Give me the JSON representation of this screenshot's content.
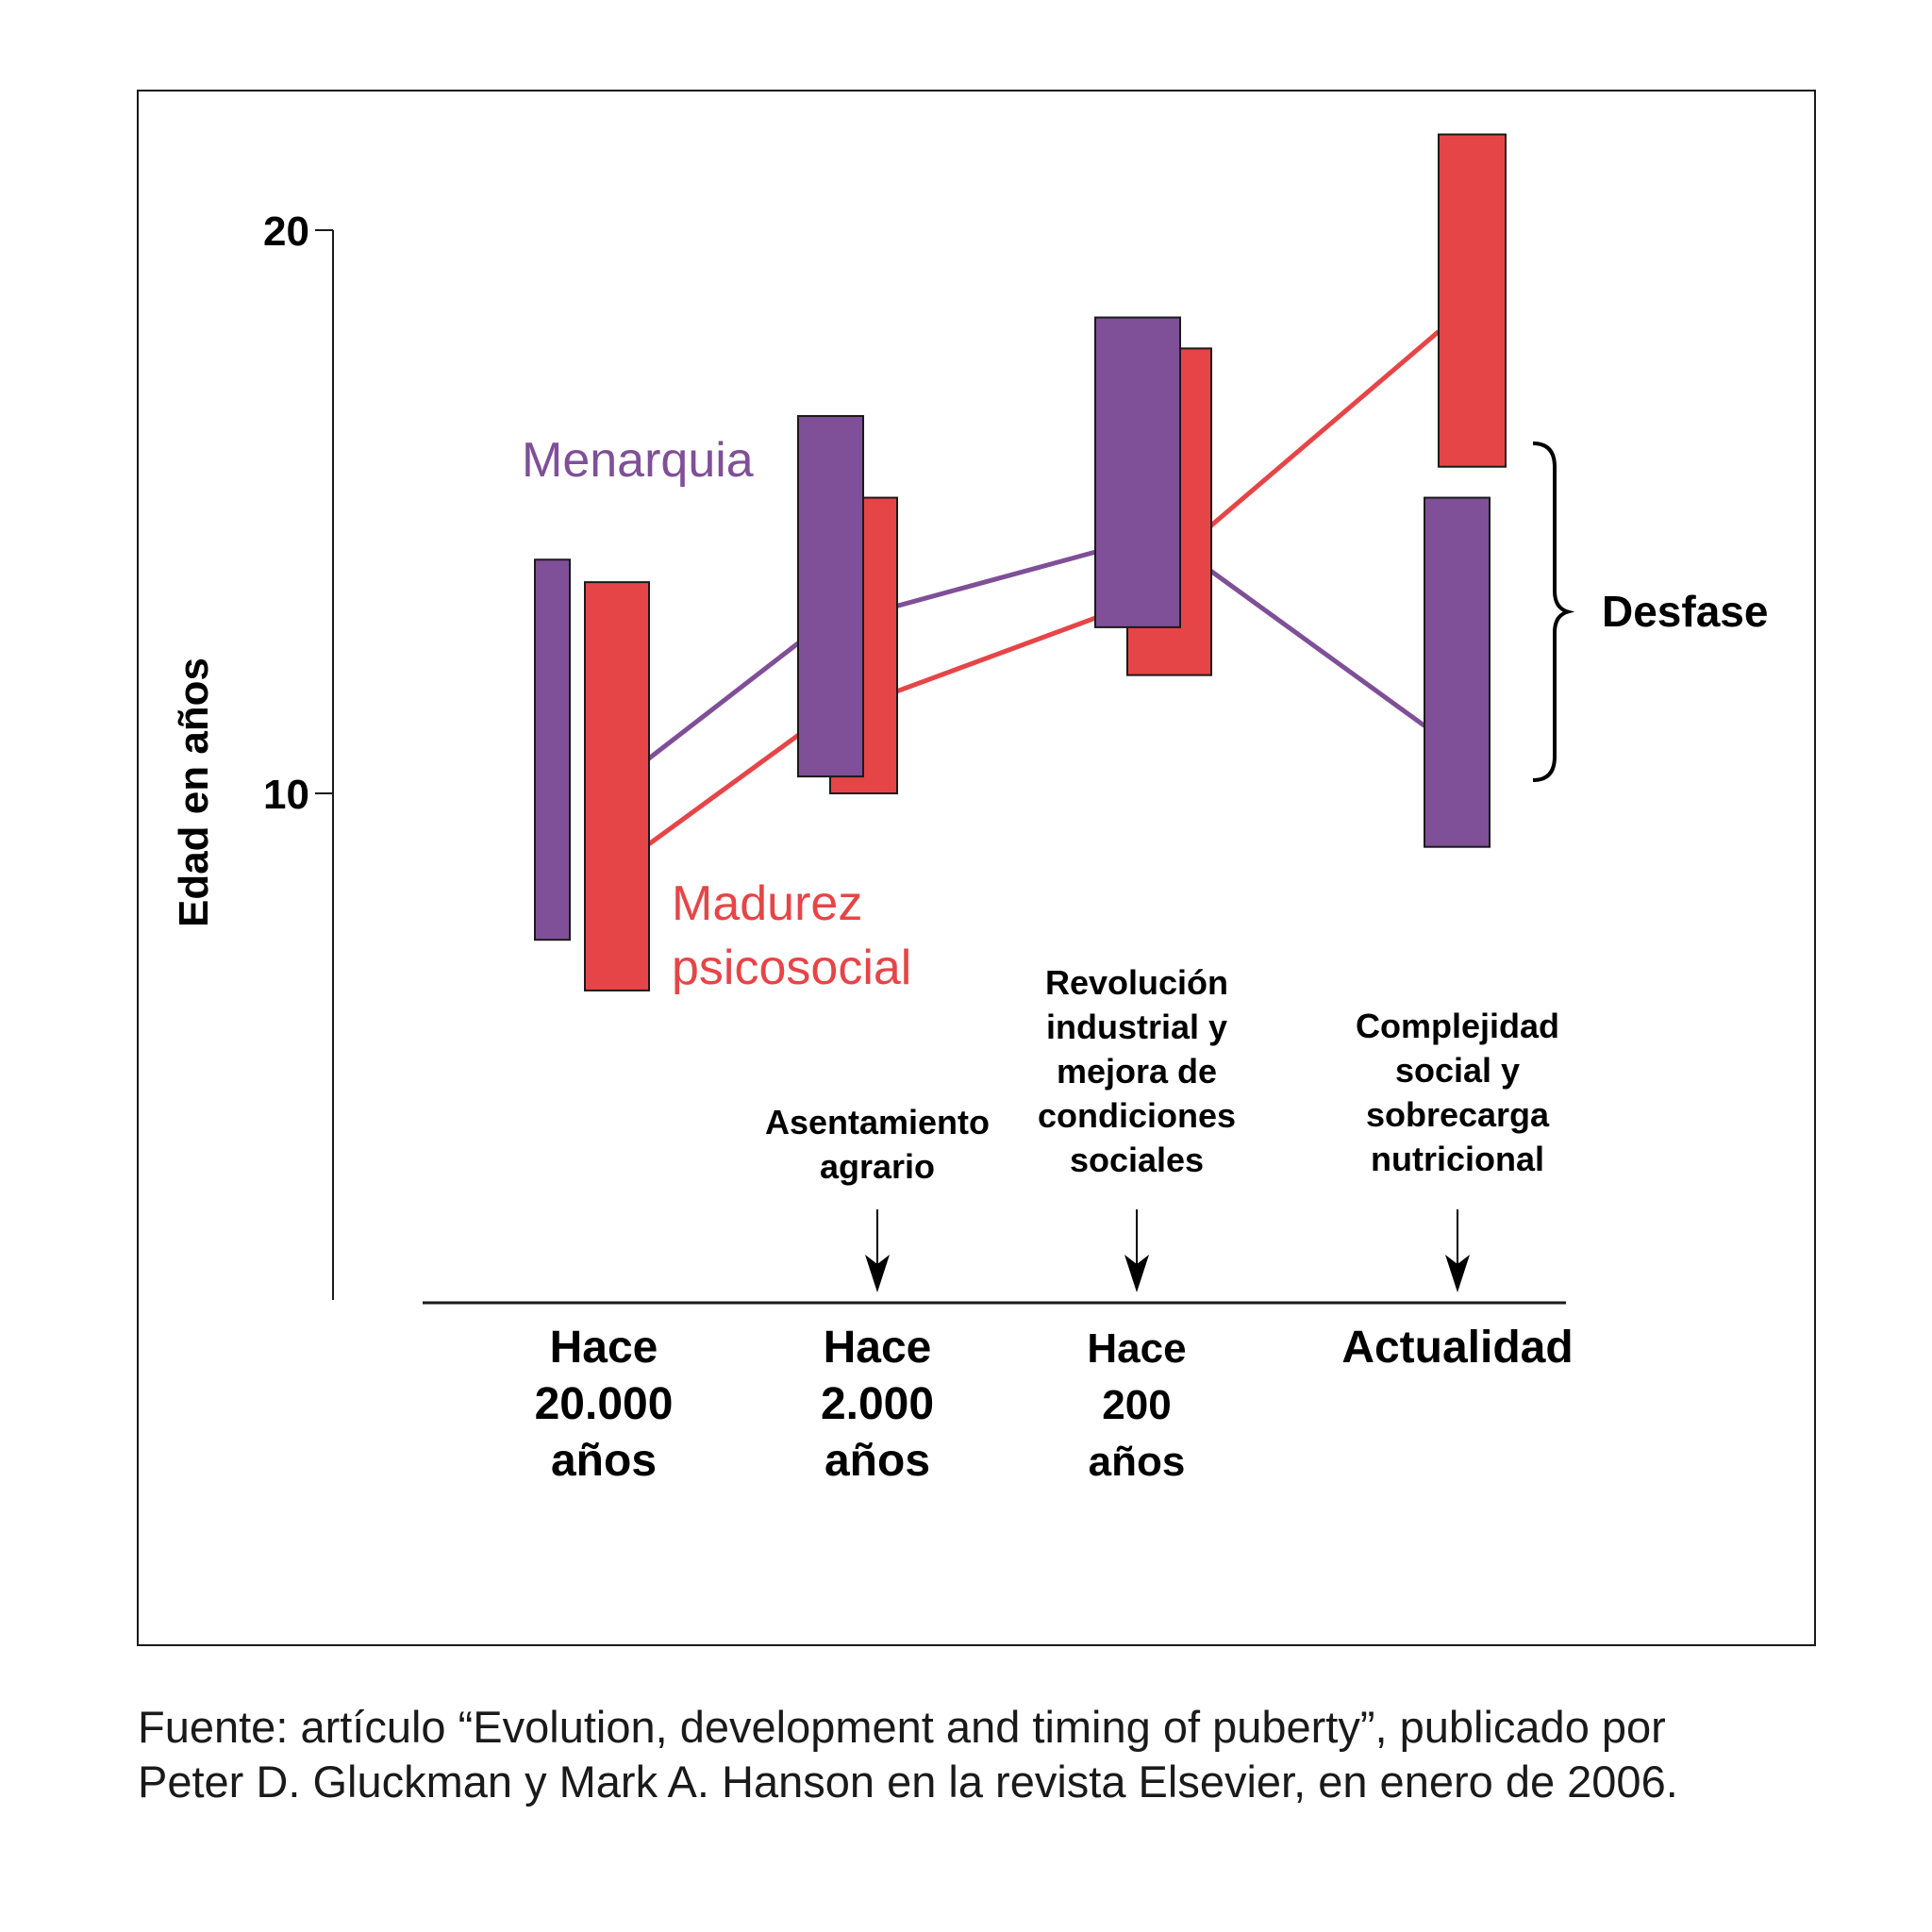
{
  "chart_data": {
    "type": "floating-bar",
    "ylabel": "Edad en años",
    "yticks": [
      10,
      20
    ],
    "ylim": [
      1,
      22
    ],
    "categories": [
      {
        "label": [
          "Hace",
          "20.000",
          "años"
        ]
      },
      {
        "label": [
          "Hace",
          "2.000",
          "años"
        ]
      },
      {
        "label": [
          "Hace",
          "200",
          "años"
        ]
      },
      {
        "label": [
          "Actualidad"
        ]
      }
    ],
    "series": [
      {
        "name": "Menarquia",
        "color": "#7f4f98",
        "ranges": [
          [
            7.4,
            14.15
          ],
          [
            10.3,
            16.7
          ],
          [
            12.95,
            18.45
          ],
          [
            9.05,
            15.25
          ]
        ],
        "line": [
          10.0,
          12.95,
          14.6,
          11.2
        ]
      },
      {
        "name_lines": [
          "Madurez",
          "psicosocial"
        ],
        "color": "#e64547",
        "ranges": [
          [
            6.5,
            13.75
          ],
          [
            10.0,
            15.25
          ],
          [
            12.1,
            17.9
          ],
          [
            15.8,
            21.7
          ]
        ],
        "line": [
          9.1,
          11.3,
          13.2,
          18.2
        ]
      }
    ],
    "events": [
      {
        "category": 1,
        "lines": [
          "Asentamiento",
          "agrario"
        ]
      },
      {
        "category": 2,
        "lines": [
          "Revolución",
          "industrial y",
          "mejora de",
          "condiciones",
          "sociales"
        ]
      },
      {
        "category": 3,
        "lines": [
          "Complejidad",
          "social y",
          "sobrecarga",
          "nutricional"
        ]
      }
    ],
    "bracket_label": "Desfase"
  },
  "source": {
    "line1": "Fuente: artículo “Evolution, development and timing of puberty”, publicado por",
    "line2": "Peter D. Gluckman y Mark A. Hanson en la revista Elsevier, en enero de 2006."
  }
}
